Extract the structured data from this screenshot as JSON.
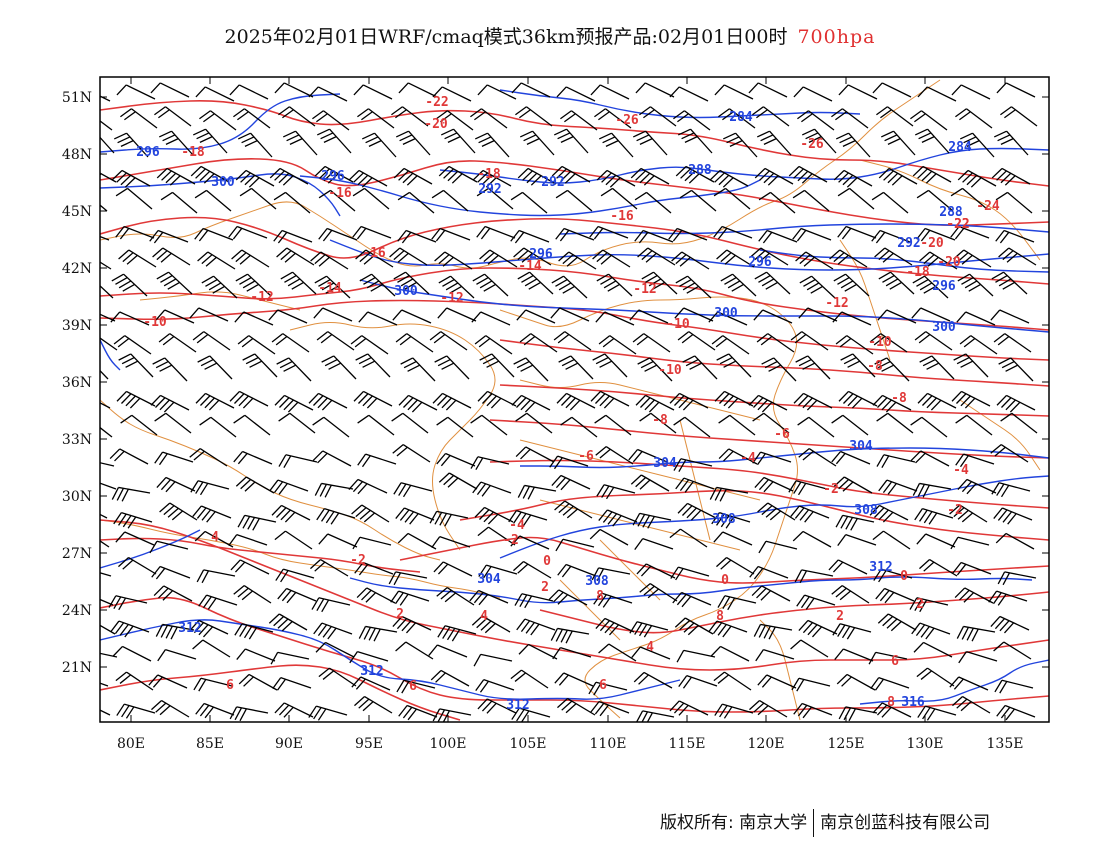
{
  "header": {
    "title": "2025年02月01日WRF/cmaq模式36km预报产品:02月01日00时",
    "level": "700hpa"
  },
  "footer": {
    "copyright": "版权所有: 南京大学",
    "company": "南京创蓝科技有限公司"
  },
  "axes": {
    "lat_ticks": [
      "51N",
      "48N",
      "45N",
      "42N",
      "39N",
      "36N",
      "33N",
      "30N",
      "27N",
      "24N",
      "21N"
    ],
    "lon_ticks": [
      "80E",
      "85E",
      "90E",
      "95E",
      "100E",
      "105E",
      "110E",
      "115E",
      "120E",
      "125E",
      "130E",
      "135E"
    ],
    "lon_range": [
      78,
      138
    ],
    "lat_range": [
      18.3,
      52
    ]
  },
  "colors": {
    "temperature": "#e03838",
    "geopotential": "#2244dd",
    "boundaries": "#e09040",
    "wind": "#000000"
  },
  "temperature_labels": [
    "-22",
    "-20",
    "-26",
    "-26",
    "-24",
    "-22",
    "-18",
    "-18",
    "-20",
    "-22",
    "-20",
    "-16",
    "-18",
    "-16",
    "-16",
    "-14",
    "-14",
    "-12",
    "-12",
    "-12",
    "-12",
    "-10",
    "-10",
    "-10",
    "-10",
    "-8",
    "-8",
    "-8",
    "-6",
    "-6",
    "-4",
    "-4",
    "-4",
    "-2",
    "-2",
    "-2",
    "-2",
    "0",
    "0",
    "0",
    "2",
    "2",
    "2",
    "2",
    "4",
    "4",
    "4",
    "6",
    "6",
    "6",
    "6",
    "8",
    "8",
    "8"
  ],
  "height_labels": [
    "284",
    "284",
    "288",
    "288",
    "292",
    "292",
    "292",
    "296",
    "296",
    "296",
    "296",
    "296",
    "300",
    "300",
    "300",
    "300",
    "304",
    "304",
    "304",
    "308",
    "308",
    "308",
    "312",
    "312",
    "312",
    "312",
    "316"
  ]
}
